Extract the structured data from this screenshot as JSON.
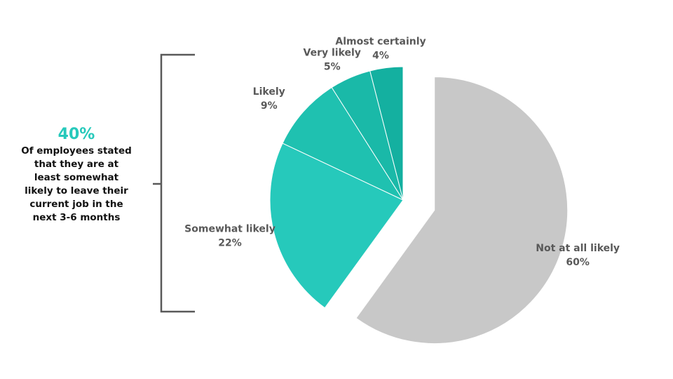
{
  "chart_data": {
    "type": "pie",
    "categories": [
      "Not at all likely",
      "Somewhat likely",
      "Likely",
      "Very likely",
      "Almost certainly"
    ],
    "values": [
      60,
      22,
      9,
      5,
      4
    ],
    "value_labels": [
      "60%",
      "22%",
      "9%",
      "5%",
      "4%"
    ],
    "colors": [
      "#c8c8c8",
      "#26c9bb",
      "#1fc1b0",
      "#1ab9a8",
      "#14b0a0"
    ],
    "exploded": [
      true,
      false,
      false,
      false,
      false
    ],
    "callout": {
      "headline": "40%",
      "text": "Of employees stated that they are at least somewhat likely to leave their current job in the next 3-6 months"
    }
  }
}
